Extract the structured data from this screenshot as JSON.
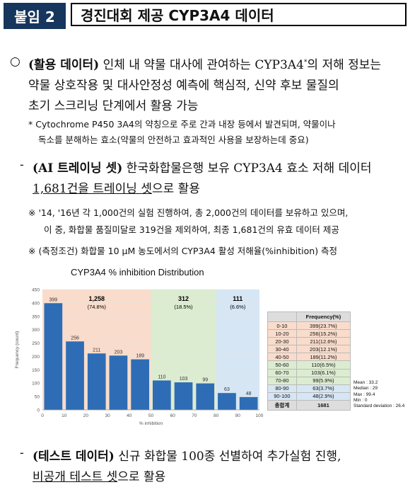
{
  "header": {
    "tag": "붙임 2",
    "title": "경진대회 제공 CYP3A4 데이터"
  },
  "section1": {
    "bullet": "○",
    "label": "(활용 데이터)",
    "line1_pre": " 인체 내 약물 대사에 관여하는 CYP3A4",
    "sup": "*",
    "line1_post": "의 저해 정보는",
    "line2": "약물 상호작용 및 대사안정성 예측에 핵심적, 신약 후보 물질의",
    "line3": "초기 스크리닝 단계에서 활용 가능",
    "note1": "* Cytochrome P450 3A4의 약칭으로 주로 간과 내장 등에서 발견되며, 약물이나",
    "note2": "독소를 분해하는 효소(약물의 안전하고 효과적인 사용을 보장하는데 중요)"
  },
  "section2": {
    "dash": "-",
    "label": "(AI 트레이닝 셋)",
    "line1": " 한국화합물은행 보유 CYP3A4 효소 저해 데이터",
    "underlined": "1,681건을 트레이닝 셋",
    "line2_post": "으로 활용",
    "note1": "※ '14, '16년 각 1,000건의 실험 진행하여, 총 2,000건의 데이터를 보유하고 있으며,",
    "note2": "이 중, 화합물 품질미달로 319건을 제외하여, 최종 1,681건의 유효 데이터 제공",
    "note3": "※ (측정조건) 화합물 10 μM 농도에서의 CYP3A4 활성 저해율(%inhibition) 측정"
  },
  "chart_data": {
    "type": "bar",
    "title": "CYP3A4 % inhibition Distribution",
    "xlabel": "% inhibition",
    "ylabel": "Frequency (count)",
    "ylim": [
      0,
      450
    ],
    "yticks": [
      "0",
      "50",
      "100",
      "150",
      "200",
      "250",
      "300",
      "350",
      "400",
      "450"
    ],
    "xticks": [
      "0",
      "10",
      "20",
      "30",
      "40",
      "50",
      "60",
      "70",
      "80",
      "90",
      "100"
    ],
    "categories": [
      "0-10",
      "10-20",
      "20-30",
      "30-40",
      "40-50",
      "50-60",
      "60-70",
      "70-80",
      "80-90",
      "90-100"
    ],
    "values": [
      399,
      256,
      211,
      203,
      189,
      110,
      103,
      99,
      63,
      48
    ],
    "groups": [
      {
        "count": "1,258",
        "pct": "(74.8%)",
        "range": [
          0,
          50
        ],
        "color": "#f9dccb"
      },
      {
        "count": "312",
        "pct": "(18.5%)",
        "range": [
          50,
          80
        ],
        "color": "#dcecd0"
      },
      {
        "count": "111",
        "pct": "(6.6%)",
        "range": [
          80,
          100
        ],
        "color": "#d6e6f4"
      }
    ],
    "bar_color": "#2e6db5"
  },
  "freq_table": {
    "header": "Frequency(%)",
    "rows": [
      {
        "range": "0-10",
        "freq": "399(23.7%)",
        "color": "#f9dccb"
      },
      {
        "range": "10-20",
        "freq": "256(15.2%)",
        "color": "#f9dccb"
      },
      {
        "range": "20-30",
        "freq": "211(12.6%)",
        "color": "#f9dccb"
      },
      {
        "range": "30-40",
        "freq": "203(12.1%)",
        "color": "#f9dccb"
      },
      {
        "range": "40-50",
        "freq": "189(11.2%)",
        "color": "#f9dccb"
      },
      {
        "range": "50-60",
        "freq": "110(6.5%)",
        "color": "#dcecd0"
      },
      {
        "range": "60-70",
        "freq": "103(6.1%)",
        "color": "#dcecd0"
      },
      {
        "range": "70-80",
        "freq": "99(5.9%)",
        "color": "#dcecd0"
      },
      {
        "range": "80-90",
        "freq": "63(3.7%)",
        "color": "#d6e6f4"
      },
      {
        "range": "90-100",
        "freq": "48(2.9%)",
        "color": "#d6e6f4"
      }
    ],
    "total_label": "총합계",
    "total": "1681"
  },
  "stats": [
    "Mean : 33.2",
    "Median : 29",
    "Max : 99.4",
    "Min : 0",
    "Standard deviation : 26.4"
  ],
  "section3": {
    "dash": "-",
    "label": "(테스트 데이터)",
    "line1": " 신규 화합물 100종 선별하여 추가실험 진행,",
    "underlined": "비공개 테스트 셋",
    "line2_post": "으로 활용"
  }
}
